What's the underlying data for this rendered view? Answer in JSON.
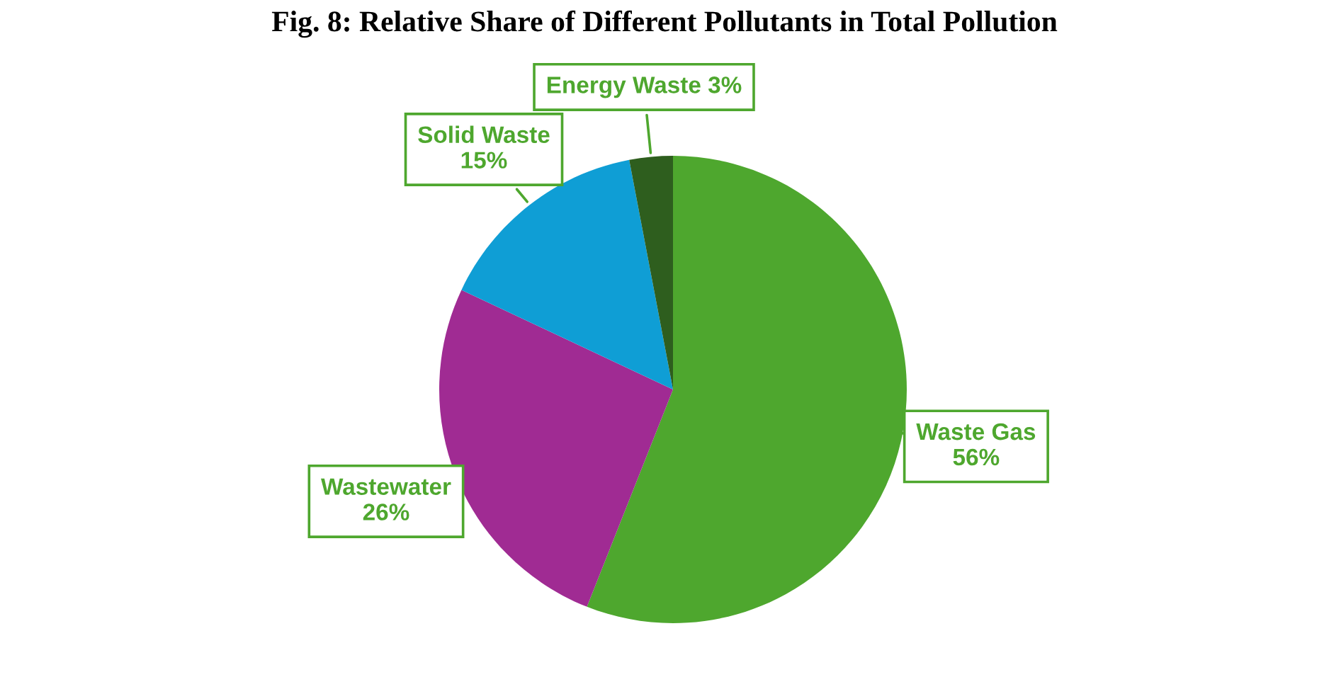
{
  "chart_data": {
    "type": "pie",
    "title": "Fig. 8: Relative Share of Different Pollutants in Total Pollution",
    "categories": [
      "Waste Gas",
      "Wastewater",
      "Solid Waste",
      "Energy Waste"
    ],
    "values": [
      56,
      26,
      15,
      3
    ],
    "colors": [
      "#4ea72e",
      "#a02b93",
      "#0f9ed5",
      "#2e5e1e"
    ],
    "value_labels": [
      "56%",
      "26%",
      "15%",
      "3%"
    ]
  }
}
